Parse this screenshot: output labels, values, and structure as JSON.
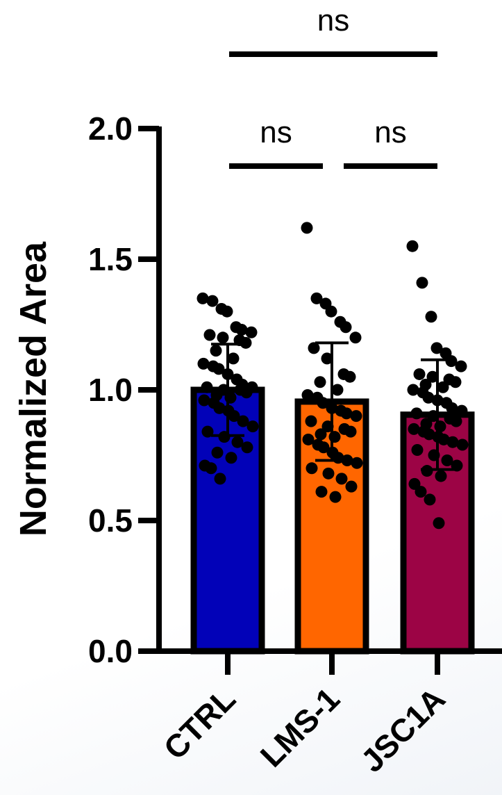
{
  "chart_data": {
    "type": "bar",
    "title": "",
    "xlabel": "",
    "ylabel": "Normalized Area",
    "ylim": [
      0,
      2.0
    ],
    "yticks": [
      "0.0",
      "0.5",
      "1.0",
      "1.5",
      "2.0"
    ],
    "ytick_values": [
      0,
      0.5,
      1.0,
      1.5,
      2.0
    ],
    "grid": false,
    "categories": [
      "CTRL",
      "LMS-1",
      "JSC1A"
    ],
    "values": [
      1.0,
      0.955,
      0.905
    ],
    "errors": [
      0.175,
      0.225,
      0.21
    ],
    "colors": [
      "#0202b8",
      "#ff6600",
      "#9c0445"
    ],
    "points": [
      [
        1.35,
        1.34,
        1.31,
        1.3,
        1.24,
        1.23,
        1.22,
        1.21,
        1.2,
        1.19,
        1.18,
        1.15,
        1.12,
        1.1,
        1.09,
        1.08,
        1.06,
        1.04,
        1.02,
        1.01,
        1.01,
        1.0,
        1.0,
        0.99,
        0.98,
        0.97,
        0.96,
        0.95,
        0.93,
        0.92,
        0.9,
        0.88,
        0.86,
        0.84,
        0.82,
        0.8,
        0.78,
        0.76,
        0.74,
        0.71,
        0.7,
        0.66
      ],
      [
        1.62,
        1.35,
        1.33,
        1.3,
        1.26,
        1.24,
        1.2,
        1.16,
        1.12,
        1.06,
        1.05,
        1.03,
        1.0,
        0.98,
        0.97,
        0.95,
        0.93,
        0.92,
        0.91,
        0.9,
        0.88,
        0.86,
        0.85,
        0.84,
        0.83,
        0.82,
        0.81,
        0.79,
        0.78,
        0.76,
        0.74,
        0.73,
        0.72,
        0.7,
        0.68,
        0.66,
        0.63,
        0.61,
        0.59
      ],
      [
        1.55,
        1.41,
        1.28,
        1.16,
        1.14,
        1.11,
        1.09,
        1.06,
        1.05,
        1.04,
        1.03,
        1.02,
        1.01,
        1.0,
        0.99,
        0.97,
        0.96,
        0.95,
        0.93,
        0.92,
        0.91,
        0.9,
        0.89,
        0.88,
        0.87,
        0.86,
        0.85,
        0.84,
        0.83,
        0.82,
        0.81,
        0.8,
        0.79,
        0.77,
        0.75,
        0.73,
        0.71,
        0.69,
        0.67,
        0.64,
        0.61,
        0.58,
        0.49
      ]
    ],
    "comparisons": [
      {
        "from": 0,
        "to": 2,
        "label": "ns"
      },
      {
        "from": 0,
        "to": 1,
        "label": "ns"
      },
      {
        "from": 1,
        "to": 2,
        "label": "ns"
      }
    ]
  }
}
